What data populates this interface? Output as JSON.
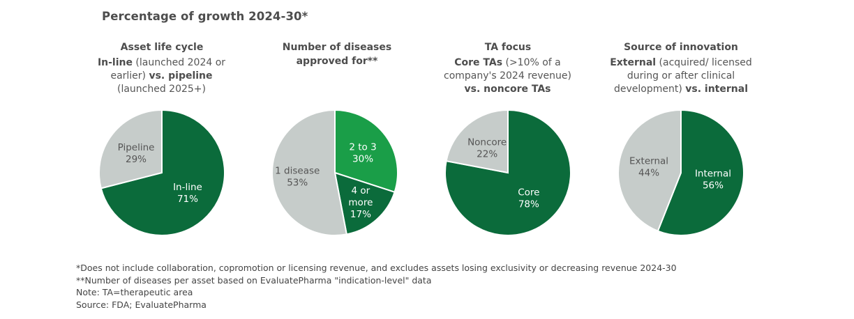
{
  "chart_data": {
    "title": "Percentage of growth 2024-30*",
    "colors": {
      "dark_green": "#0b6b3b",
      "bright_green": "#1a9e48",
      "gray": "#c6ccca",
      "label_light": "#ffffff",
      "label_dark": "#555555"
    },
    "charts": [
      {
        "type": "pie",
        "title": "Asset life cycle",
        "subtitle": [
          {
            "text": "In-line",
            "bold": true
          },
          {
            "text": " (launched 2024 or earlier) ",
            "bold": false
          },
          {
            "text": "vs. pipeline",
            "bold": true
          },
          {
            "text": " (launched 2025+)",
            "bold": false
          }
        ],
        "slices": [
          {
            "label": "In-line",
            "value": 71,
            "value_label": "71%",
            "color": "#0b6b3b"
          },
          {
            "label": "Pipeline",
            "value": 29,
            "value_label": "29%",
            "color": "#c6ccca"
          }
        ]
      },
      {
        "type": "pie",
        "title": "Number of diseases approved for**",
        "subtitle": [],
        "slices": [
          {
            "label": "2 to 3",
            "value": 30,
            "value_label": "30%",
            "color": "#1a9e48"
          },
          {
            "label": "4 or more",
            "value": 17,
            "value_label": "17%",
            "color": "#0b6b3b"
          },
          {
            "label": "1 disease",
            "value": 53,
            "value_label": "53%",
            "color": "#c6ccca"
          }
        ]
      },
      {
        "type": "pie",
        "title": "TA focus",
        "subtitle": [
          {
            "text": "Core TAs",
            "bold": true
          },
          {
            "text": " (>10% of a company's 2024 revenue) ",
            "bold": false
          },
          {
            "text": "vs. noncore TAs",
            "bold": true
          }
        ],
        "slices": [
          {
            "label": "Core",
            "value": 78,
            "value_label": "78%",
            "color": "#0b6b3b"
          },
          {
            "label": "Noncore",
            "value": 22,
            "value_label": "22%",
            "color": "#c6ccca"
          }
        ]
      },
      {
        "type": "pie",
        "title": "Source of innovation",
        "subtitle": [
          {
            "text": "External",
            "bold": true
          },
          {
            "text": " (acquired/ licensed during or after clinical development) ",
            "bold": false
          },
          {
            "text": "vs. internal",
            "bold": true
          }
        ],
        "slices": [
          {
            "label": "Internal",
            "value": 56,
            "value_label": "56%",
            "color": "#0b6b3b"
          },
          {
            "label": "External",
            "value": 44,
            "value_label": "44%",
            "color": "#c6ccca"
          }
        ]
      }
    ]
  },
  "footnotes": [
    "*Does not include collaboration, copromotion or licensing revenue, and excludes assets losing exclusivity or decreasing revenue 2024-30",
    "**Number of diseases per asset based on EvaluatePharma \"indication-level\" data",
    "Note: TA=therapeutic area",
    "Source: FDA; EvaluatePharma"
  ]
}
